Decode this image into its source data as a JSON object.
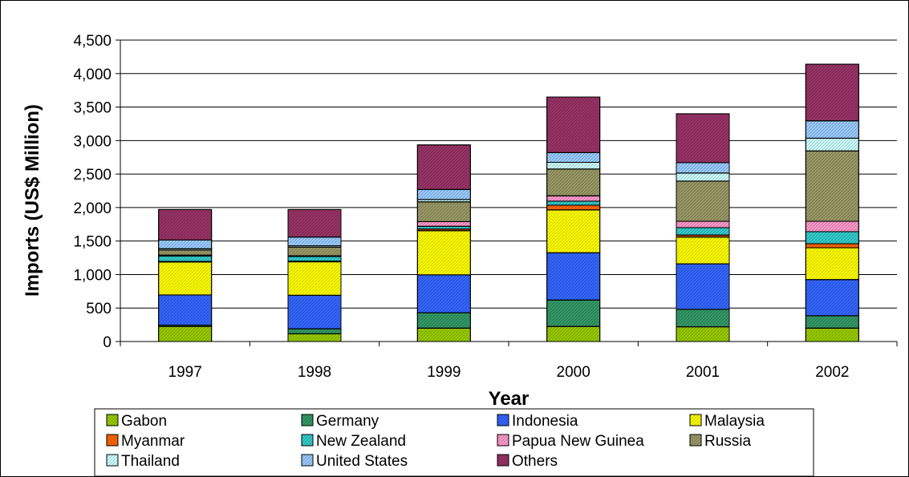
{
  "chart_data": {
    "type": "bar",
    "stacked": true,
    "xlabel": "Year",
    "ylabel": "Imports (US$ Million)",
    "ylim": [
      0,
      4500
    ],
    "yticks": [
      0,
      500,
      1000,
      1500,
      2000,
      2500,
      3000,
      3500,
      4000,
      4500
    ],
    "ytick_labels": [
      "0",
      "500",
      "1,000",
      "1,500",
      "2,000",
      "2,500",
      "3,000",
      "3,500",
      "4,000",
      "4,500"
    ],
    "grid": true,
    "legend_position": "bottom",
    "categories": [
      "1997",
      "1998",
      "1999",
      "2000",
      "2001",
      "2002"
    ],
    "series": [
      {
        "name": "Gabon",
        "color": "#99CC00",
        "values": [
          225,
          115,
          200,
          225,
          220,
          200
        ]
      },
      {
        "name": "Germany",
        "color": "#339966",
        "values": [
          20,
          75,
          230,
          395,
          260,
          185
        ]
      },
      {
        "name": "Indonesia",
        "color": "#3366FF",
        "values": [
          450,
          500,
          565,
          705,
          680,
          540
        ]
      },
      {
        "name": "Malaysia",
        "color": "#FFFF00",
        "values": [
          490,
          500,
          660,
          640,
          400,
          475
        ]
      },
      {
        "name": "Myanmar",
        "color": "#FF6600",
        "values": [
          10,
          10,
          25,
          70,
          30,
          60
        ]
      },
      {
        "name": "New Zealand",
        "color": "#33CCCC",
        "values": [
          80,
          70,
          40,
          60,
          110,
          180
        ]
      },
      {
        "name": "Papua New Guinea",
        "color": "#FF99CC",
        "values": [
          15,
          10,
          70,
          80,
          95,
          155
        ]
      },
      {
        "name": "Russia",
        "color": "#999966",
        "values": [
          75,
          130,
          295,
          400,
          600,
          1050
        ]
      },
      {
        "name": "Thailand",
        "color": "#CCFFFF",
        "values": [
          20,
          20,
          35,
          100,
          120,
          190
        ]
      },
      {
        "name": "United States",
        "color": "#99CCFF",
        "values": [
          130,
          130,
          150,
          145,
          155,
          260
        ]
      },
      {
        "name": "Others",
        "color": "#993366",
        "values": [
          455,
          410,
          665,
          830,
          730,
          845
        ]
      }
    ]
  }
}
